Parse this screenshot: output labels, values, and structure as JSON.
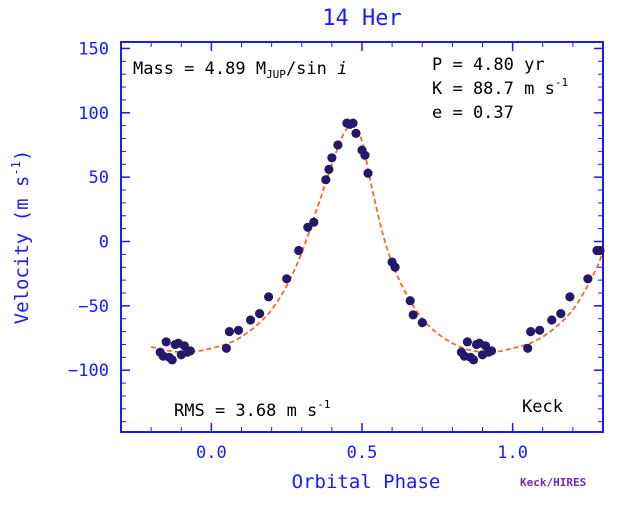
{
  "chart_data": {
    "type": "scatter",
    "title": "14 Her",
    "xlabel": "Orbital Phase",
    "ylabel": "Velocity  (m s",
    "ylabel_sup": "-1",
    "ylabel_close": ")",
    "xlim": [
      -0.3,
      1.3
    ],
    "ylim": [
      -148,
      155
    ],
    "x_ticks": [
      0.0,
      0.5,
      1.0
    ],
    "x_tick_labels": [
      "0.0",
      "0.5",
      "1.0"
    ],
    "y_ticks": [
      -100,
      -50,
      0,
      50,
      100,
      150
    ],
    "y_tick_labels": [
      "−100",
      "−50",
      "0",
      "50",
      "100",
      "150"
    ],
    "annotations": {
      "mass": "Mass = 4.89 M",
      "mass_sub": "JUP",
      "mass_tail": "/sin ",
      "mass_i": "i",
      "period": "P = 4.80 yr",
      "amplitude": "K = 88.7 m s",
      "amplitude_sup": "-1",
      "eccentricity": "e = 0.37",
      "rms": "RMS = 3.68 m s",
      "rms_sup": "-1",
      "telescope": "Keck",
      "credit": "Keck/HIRES"
    },
    "series": [
      {
        "x": [
          -0.17,
          -0.16,
          -0.15,
          -0.14,
          -0.13,
          -0.12,
          -0.11,
          -0.1,
          -0.09,
          -0.08,
          -0.07,
          0.05,
          0.06,
          0.09,
          0.13,
          0.16,
          0.19,
          0.25,
          0.29,
          0.32,
          0.34,
          0.38,
          0.39,
          0.4,
          0.42,
          0.45,
          0.46,
          0.47,
          0.48,
          0.5,
          0.51,
          0.52,
          0.6,
          0.61,
          0.66,
          0.67,
          0.7,
          0.83,
          0.84,
          0.85,
          0.86,
          0.87,
          0.88,
          0.89,
          0.9,
          0.91,
          0.92,
          0.93,
          1.05,
          1.06,
          1.09,
          1.13,
          1.16,
          1.19,
          1.25,
          1.28,
          1.29
        ],
        "values": [
          -86,
          -89,
          -78,
          -90,
          -92,
          -80,
          -79,
          -88,
          -81,
          -86,
          -85,
          -83,
          -70,
          -69,
          -61,
          -56,
          -43,
          -29,
          -7,
          11,
          15,
          48,
          56,
          65,
          75,
          92,
          91,
          92,
          84,
          71,
          67,
          53,
          -16,
          -20,
          -46,
          -57,
          -63,
          -86,
          -89,
          -78,
          -90,
          -92,
          -80,
          -79,
          -88,
          -81,
          -86,
          -85,
          -83,
          -70,
          -69,
          -61,
          -56,
          -43,
          -29,
          -7,
          -7
        ]
      }
    ],
    "fit": {
      "x": [
        -0.2,
        -0.1,
        0.0,
        0.1,
        0.2,
        0.28,
        0.35,
        0.4,
        0.44,
        0.47,
        0.5,
        0.53,
        0.57,
        0.62,
        0.7,
        0.8,
        0.9,
        1.0,
        1.1,
        1.2,
        1.28,
        1.3
      ],
      "values": [
        -82,
        -86,
        -83,
        -74,
        -53,
        -20,
        25,
        60,
        84,
        90,
        78,
        45,
        5,
        -28,
        -60,
        -79,
        -86,
        -83,
        -74,
        -53,
        -20,
        -5
      ]
    },
    "grid": false
  },
  "colors": {
    "axes": "#1a1aff",
    "points": "#24186a",
    "fit": "#f26a2e",
    "credit": "#6a2ab8"
  }
}
